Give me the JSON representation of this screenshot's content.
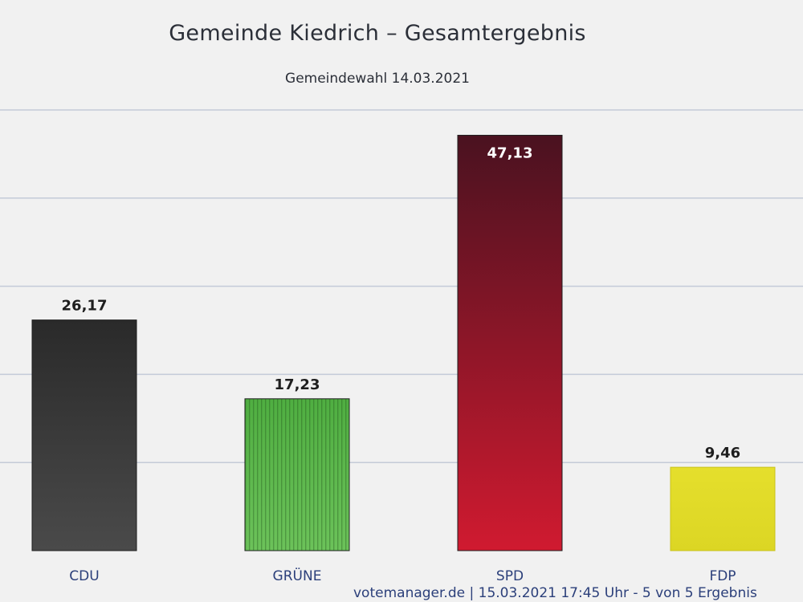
{
  "chart_data": {
    "type": "bar",
    "title": "Gemeinde Kiedrich – Gesamtergebnis",
    "subtitle": "Gemeindewahl 14.03.2021",
    "categories": [
      "CDU",
      "GRÜNE",
      "SPD",
      "FDP"
    ],
    "values": [
      26.17,
      17.23,
      47.13,
      9.46
    ],
    "value_labels": [
      "26,17",
      "17,23",
      "47,13",
      "9,46"
    ],
    "colors": [
      "#3a3a3a",
      "#58b548",
      "#b4142c",
      "#e3de2a"
    ],
    "ylim": [
      0,
      50
    ],
    "grid": true,
    "legend": "none"
  },
  "footer": "votemanager.de | 15.03.2021 17:45 Uhr - 5 von 5 Ergebnis"
}
